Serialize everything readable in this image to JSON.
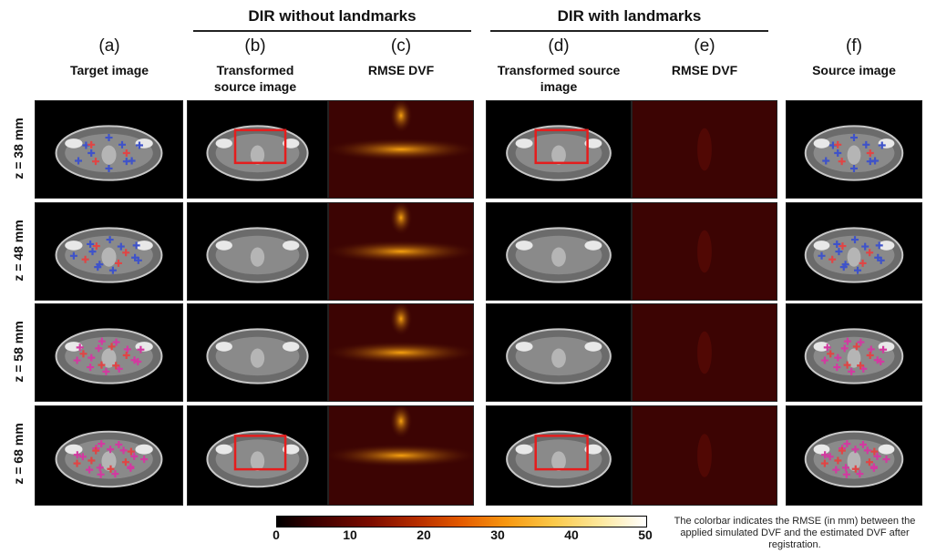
{
  "groups": [
    {
      "title": "DIR without landmarks"
    },
    {
      "title": "DIR with landmarks"
    }
  ],
  "columns": [
    {
      "letter": "(a)",
      "label": "Target image",
      "kind": "ct"
    },
    {
      "letter": "(b)",
      "label": "Transformed source image",
      "kind": "ct"
    },
    {
      "letter": "(c)",
      "label": "RMSE DVF",
      "kind": "rmse-high"
    },
    {
      "letter": "(d)",
      "label": "Transformed source image",
      "kind": "ct"
    },
    {
      "letter": "(e)",
      "label": "RMSE DVF",
      "kind": "rmse-low"
    },
    {
      "letter": "(f)",
      "label": "Source image",
      "kind": "ct"
    }
  ],
  "rows": [
    {
      "label": "z = 38 mm"
    },
    {
      "label": "z = 48 mm"
    },
    {
      "label": "z = 58 mm"
    },
    {
      "label": "z = 68 mm"
    }
  ],
  "colorbar": {
    "ticks": [
      "0",
      "10",
      "20",
      "30",
      "40",
      "50"
    ],
    "caption": "The colorbar indicates the RMSE (in mm) between the applied simulated DVF and the estimated DVF after registration."
  },
  "colors": {
    "landmark_blue": "#3f53c9",
    "landmark_magenta": "#d23aa0",
    "landmark_red": "#e04545",
    "highlight_box": "#e51d1d",
    "rmse_bg": "#3c0403",
    "rmse_hot": "#f7a10f"
  }
}
